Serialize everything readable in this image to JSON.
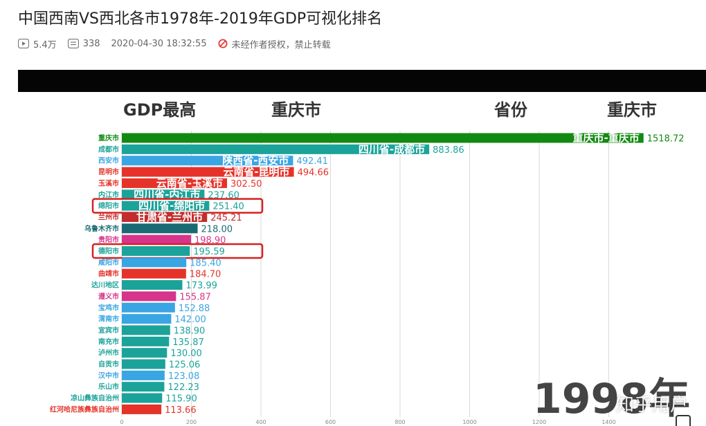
{
  "page": {
    "title": "中国西南VS西北各市1978年-2019年GDP可视化排名",
    "views": "5.4万",
    "comments": "338",
    "date": "2020-04-30 18:32:55",
    "copyright": "未经作者授权，禁止转载"
  },
  "watermark": "知乎用户",
  "chart_data": {
    "type": "bar",
    "orientation": "horizontal",
    "header": {
      "label_top": "GDP最高",
      "value_top": "重庆市",
      "label_prov": "省份",
      "value_prov": "重庆市"
    },
    "year_text": "1998年",
    "xlim": [
      0,
      1500
    ],
    "xticks": [
      0,
      200,
      400,
      600,
      800,
      1000,
      1200,
      1400
    ],
    "bars": [
      {
        "name": "重庆市",
        "value": 1518.72,
        "display": "1518.72",
        "label": "重庆市-重庆市",
        "color": "#128a12",
        "highlight": false
      },
      {
        "name": "成都市",
        "value": 883.86,
        "display": "883.86",
        "label": "四川省-成都市",
        "color": "#1ba39a",
        "highlight": false
      },
      {
        "name": "西安市",
        "value": 492.41,
        "display": "492.41",
        "label": "陕西省-西安市",
        "color": "#3aa5e3",
        "highlight": false
      },
      {
        "name": "昆明市",
        "value": 494.66,
        "display": "494.66",
        "label": "云南省-昆明市",
        "color": "#e5332a",
        "highlight": false
      },
      {
        "name": "玉溪市",
        "value": 302.5,
        "display": "302.50",
        "label": "云南省-玉溪市",
        "color": "#e5332a",
        "highlight": false
      },
      {
        "name": "内江市",
        "value": 237.6,
        "display": "237.60",
        "label": "四川省-内江市",
        "color": "#1ba39a",
        "highlight": false
      },
      {
        "name": "绵阳市",
        "value": 251.4,
        "display": "251.40",
        "label": "四川省-绵阳市",
        "color": "#1ba39a",
        "highlight": true
      },
      {
        "name": "兰州市",
        "value": 245.21,
        "display": "245.21",
        "label": "甘肃省-兰州市",
        "color": "#c32d2d",
        "highlight": false
      },
      {
        "name": "乌鲁木齐市",
        "value": 218.0,
        "display": "218.00",
        "label": "",
        "color": "#1a6a74",
        "highlight": false
      },
      {
        "name": "贵阳市",
        "value": 198.9,
        "display": "198.90",
        "label": "",
        "color": "#d6358c",
        "highlight": false
      },
      {
        "name": "德阳市",
        "value": 195.59,
        "display": "195.59",
        "label": "",
        "color": "#1ba39a",
        "highlight": true
      },
      {
        "name": "咸阳市",
        "value": 185.4,
        "display": "185.40",
        "label": "",
        "color": "#3aa5e3",
        "highlight": false
      },
      {
        "name": "曲靖市",
        "value": 184.7,
        "display": "184.70",
        "label": "",
        "color": "#e5332a",
        "highlight": false
      },
      {
        "name": "达川地区",
        "value": 173.99,
        "display": "173.99",
        "label": "",
        "color": "#1ba39a",
        "highlight": false
      },
      {
        "name": "遵义市",
        "value": 155.87,
        "display": "155.87",
        "label": "",
        "color": "#d6358c",
        "highlight": false
      },
      {
        "name": "宝鸡市",
        "value": 152.88,
        "display": "152.88",
        "label": "",
        "color": "#3aa5e3",
        "highlight": false
      },
      {
        "name": "渭南市",
        "value": 142.0,
        "display": "142.00",
        "label": "",
        "color": "#3aa5e3",
        "highlight": false
      },
      {
        "name": "宜宾市",
        "value": 138.9,
        "display": "138.90",
        "label": "",
        "color": "#1ba39a",
        "highlight": false
      },
      {
        "name": "南充市",
        "value": 135.87,
        "display": "135.87",
        "label": "",
        "color": "#1ba39a",
        "highlight": false
      },
      {
        "name": "泸州市",
        "value": 130.0,
        "display": "130.00",
        "label": "",
        "color": "#1ba39a",
        "highlight": false
      },
      {
        "name": "自贡市",
        "value": 125.06,
        "display": "125.06",
        "label": "",
        "color": "#1ba39a",
        "highlight": false
      },
      {
        "name": "汉中市",
        "value": 123.08,
        "display": "123.08",
        "label": "",
        "color": "#3aa5e3",
        "highlight": false
      },
      {
        "name": "乐山市",
        "value": 122.23,
        "display": "122.23",
        "label": "",
        "color": "#1ba39a",
        "highlight": false
      },
      {
        "name": "凉山彝族自治州",
        "value": 115.9,
        "display": "115.90",
        "label": "",
        "color": "#1ba39a",
        "highlight": false
      },
      {
        "name": "红河哈尼族彝族自治州",
        "value": 113.66,
        "display": "113.66",
        "label": "",
        "color": "#e5332a",
        "highlight": false
      }
    ]
  }
}
